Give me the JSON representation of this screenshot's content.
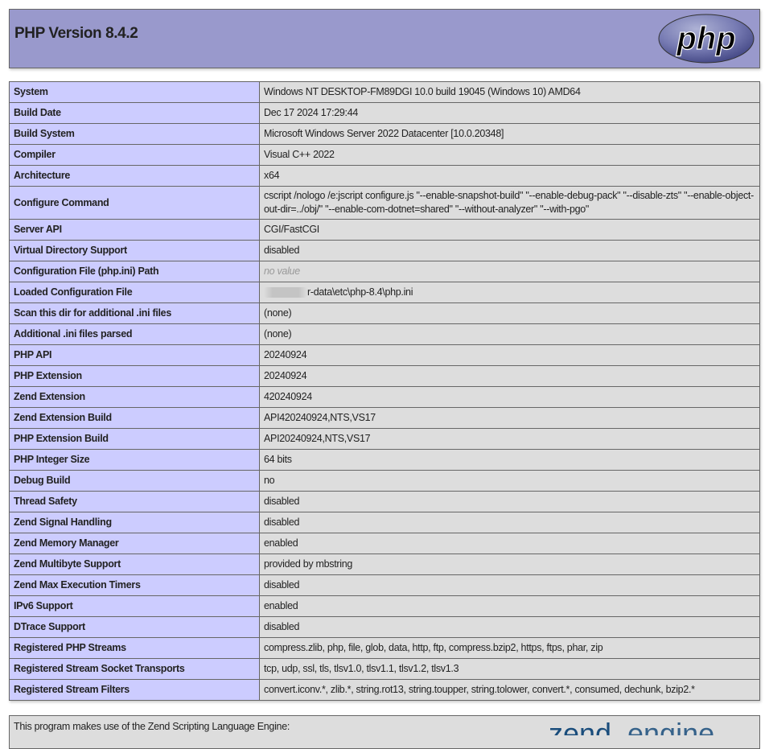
{
  "header": {
    "title": "PHP Version 8.4.2",
    "logo_text": "php"
  },
  "rows": [
    {
      "label": "System",
      "value": "Windows NT DESKTOP-FM89DGI 10.0 build 19045 (Windows 10) AMD64"
    },
    {
      "label": "Build Date",
      "value": "Dec 17 2024 17:29:44"
    },
    {
      "label": "Build System",
      "value": "Microsoft Windows Server 2022 Datacenter [10.0.20348]"
    },
    {
      "label": "Compiler",
      "value": "Visual C++ 2022"
    },
    {
      "label": "Architecture",
      "value": "x64"
    },
    {
      "label": "Configure Command",
      "value": "cscript /nologo /e:jscript configure.js \"--enable-snapshot-build\" \"--enable-debug-pack\" \"--disable-zts\" \"--enable-object-out-dir=../obj/\" \"--enable-com-dotnet=shared\" \"--without-analyzer\" \"--with-pgo\""
    },
    {
      "label": "Server API",
      "value": "CGI/FastCGI"
    },
    {
      "label": "Virtual Directory Support",
      "value": "disabled"
    },
    {
      "label": "Configuration File (php.ini) Path",
      "value": "no value"
    },
    {
      "label": "Loaded Configuration File",
      "value": "r-data\\etc\\php-8.4\\php.ini"
    },
    {
      "label": "Scan this dir for additional .ini files",
      "value": "(none)"
    },
    {
      "label": "Additional .ini files parsed",
      "value": "(none)"
    },
    {
      "label": "PHP API",
      "value": "20240924"
    },
    {
      "label": "PHP Extension",
      "value": "20240924"
    },
    {
      "label": "Zend Extension",
      "value": "420240924"
    },
    {
      "label": "Zend Extension Build",
      "value": "API420240924,NTS,VS17"
    },
    {
      "label": "PHP Extension Build",
      "value": "API20240924,NTS,VS17"
    },
    {
      "label": "PHP Integer Size",
      "value": "64 bits"
    },
    {
      "label": "Debug Build",
      "value": "no"
    },
    {
      "label": "Thread Safety",
      "value": "disabled"
    },
    {
      "label": "Zend Signal Handling",
      "value": "disabled"
    },
    {
      "label": "Zend Memory Manager",
      "value": "enabled"
    },
    {
      "label": "Zend Multibyte Support",
      "value": "provided by mbstring"
    },
    {
      "label": "Zend Max Execution Timers",
      "value": "disabled"
    },
    {
      "label": "IPv6 Support",
      "value": "enabled"
    },
    {
      "label": "DTrace Support",
      "value": "disabled"
    },
    {
      "label": "Registered PHP Streams",
      "value": "compress.zlib, php, file, glob, data, http, ftp, compress.bzip2, https, ftps, phar, zip"
    },
    {
      "label": "Registered Stream Socket Transports",
      "value": "tcp, udp, ssl, tls, tlsv1.0, tlsv1.1, tlsv1.2, tlsv1.3"
    },
    {
      "label": "Registered Stream Filters",
      "value": "convert.iconv.*, zlib.*, string.rot13, string.toupper, string.tolower, convert.*, consumed, dechunk, bzip2.*"
    }
  ],
  "zend": {
    "text": "This program makes use of the Zend Scripting Language Engine:",
    "logo_text": "zendengine"
  },
  "colors": {
    "header_bg": "#9999cc",
    "label_bg": "#ccccff",
    "value_bg": "#dddddd",
    "border": "#666666"
  }
}
